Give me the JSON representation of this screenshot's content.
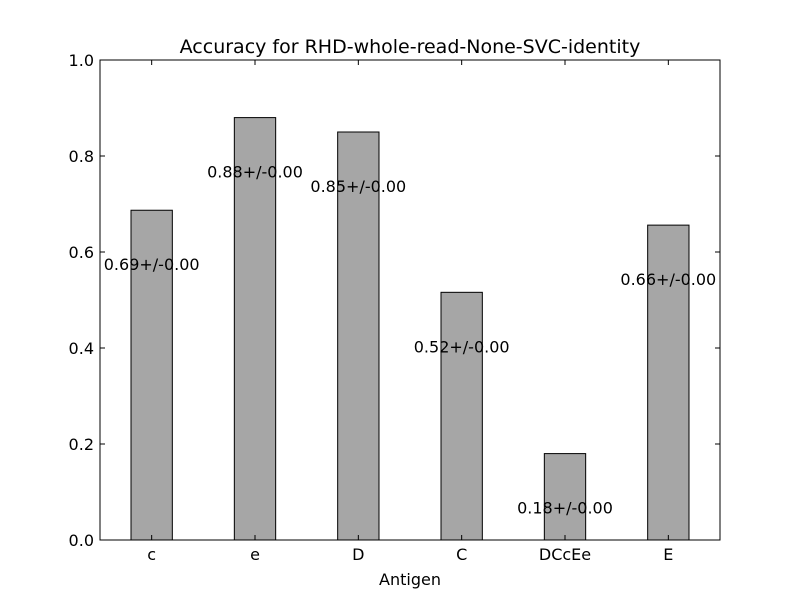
{
  "chart_data": {
    "type": "bar",
    "title": "Accuracy for RHD-whole-read-None-SVC-identity",
    "xlabel": "Antigen",
    "ylabel": "",
    "categories": [
      "c",
      "e",
      "D",
      "C",
      "DCcEe",
      "E"
    ],
    "values": [
      0.687,
      0.88,
      0.85,
      0.516,
      0.18,
      0.656
    ],
    "data_labels": [
      "0.69+/-0.00",
      "0.88+/-0.00",
      "0.85+/-0.00",
      "0.52+/-0.00",
      "0.18+/-0.00",
      "0.66+/-0.00"
    ],
    "ylim": [
      0,
      1.0
    ],
    "yticks": [
      "0.0",
      "0.2",
      "0.4",
      "0.6",
      "0.8",
      "1.0"
    ],
    "bar_color": "#a6a6a6",
    "edge_color": "#000000",
    "grid": false,
    "legend": "none"
  }
}
